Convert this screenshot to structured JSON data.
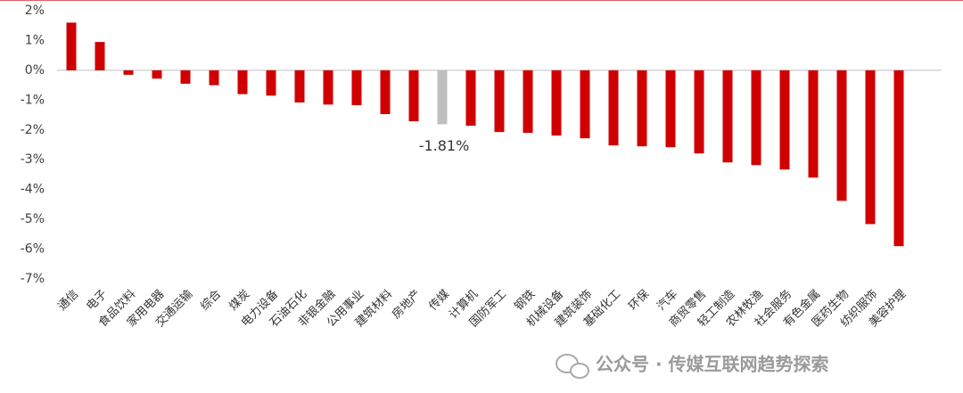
{
  "chart_data": {
    "type": "bar",
    "categories": [
      "通信",
      "电子",
      "食品饮料",
      "家用电器",
      "交通运输",
      "综合",
      "煤炭",
      "电力设备",
      "石油石化",
      "非银金融",
      "公用事业",
      "建筑材料",
      "房地产",
      "传媒",
      "计算机",
      "国防军工",
      "钢铁",
      "机械设备",
      "建筑装饰",
      "基础化工",
      "环保",
      "汽车",
      "商贸零售",
      "轻工制造",
      "农林牧渔",
      "社会服务",
      "有色金属",
      "医药生物",
      "纺织服饰",
      "美容护理"
    ],
    "values": [
      1.6,
      0.95,
      -0.15,
      -0.28,
      -0.45,
      -0.5,
      -0.8,
      -0.85,
      -1.08,
      -1.15,
      -1.17,
      -1.47,
      -1.71,
      -1.81,
      -1.86,
      -2.07,
      -2.1,
      -2.19,
      -2.28,
      -2.52,
      -2.55,
      -2.58,
      -2.79,
      -3.09,
      -3.18,
      -3.33,
      -3.6,
      -4.38,
      -5.16,
      -5.9
    ],
    "value_labels": [
      null,
      null,
      null,
      null,
      null,
      null,
      null,
      null,
      null,
      null,
      null,
      null,
      null,
      "-1.81%",
      null,
      null,
      null,
      null,
      null,
      null,
      null,
      null,
      null,
      null,
      null,
      null,
      null,
      null,
      null,
      null
    ],
    "colors": [
      "#d00000",
      "#d00000",
      "#d00000",
      "#d00000",
      "#d00000",
      "#d00000",
      "#d00000",
      "#d00000",
      "#d00000",
      "#d00000",
      "#d00000",
      "#d00000",
      "#d00000",
      "#bfbfbf",
      "#d00000",
      "#d00000",
      "#d00000",
      "#d00000",
      "#d00000",
      "#d00000",
      "#d00000",
      "#d00000",
      "#d00000",
      "#d00000",
      "#d00000",
      "#d00000",
      "#d00000",
      "#d00000",
      "#d00000",
      "#d00000"
    ],
    "ylim": [
      -7,
      2
    ],
    "yticks": [
      {
        "value": 2,
        "label": "2%"
      },
      {
        "value": 1,
        "label": "1%"
      },
      {
        "value": 0,
        "label": "0%"
      },
      {
        "value": -1,
        "label": "-1%"
      },
      {
        "value": -2,
        "label": "-2%"
      },
      {
        "value": -3,
        "label": "-3%"
      },
      {
        "value": -4,
        "label": "-4%"
      },
      {
        "value": -5,
        "label": "-5%"
      },
      {
        "value": -6,
        "label": "-6%"
      },
      {
        "value": -7,
        "label": "-7%"
      }
    ],
    "grid": false,
    "watermark": "公众号 · 传媒互联网趋势探索"
  }
}
